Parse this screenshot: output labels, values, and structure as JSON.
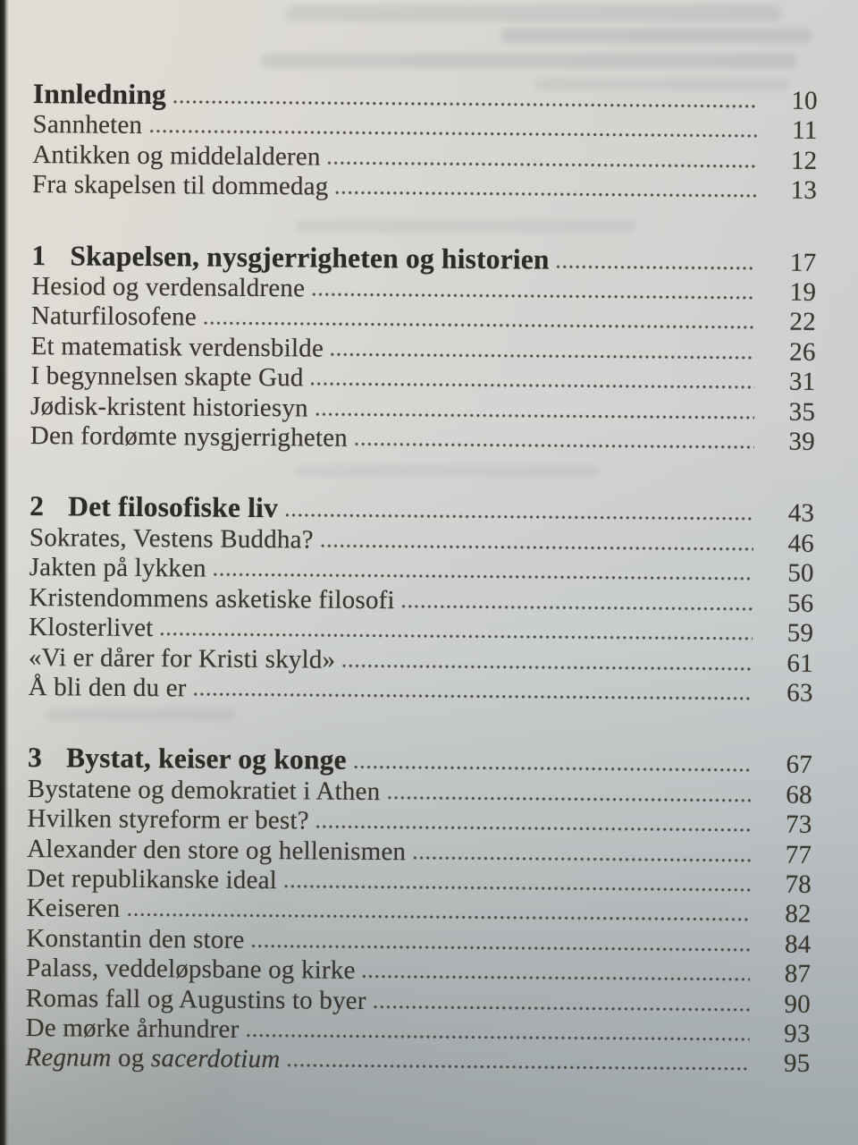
{
  "document": {
    "kind": "book-table-of-contents",
    "language": "Norwegian"
  },
  "colors": {
    "paper_light": "#d9d7d2",
    "paper_shadow": "#99a0a1",
    "spine_edge": "#1a1a18",
    "ink": "#39362f",
    "ink_heading": "#2d2b26"
  },
  "toc": {
    "sections": [
      {
        "heading": {
          "number": "",
          "title": "Innledning",
          "page": "10"
        },
        "entries": [
          {
            "title": "Sannheten",
            "page": "11"
          },
          {
            "title": "Antikken og middelalderen",
            "page": "12"
          },
          {
            "title": "Fra skapelsen til dommedag",
            "page": "13"
          }
        ]
      },
      {
        "heading": {
          "number": "1",
          "title": "Skapelsen, nysgjerrigheten og historien",
          "page": "17"
        },
        "entries": [
          {
            "title": "Hesiod og verdensaldrene",
            "page": "19"
          },
          {
            "title": "Naturfilosofene",
            "page": "22"
          },
          {
            "title": "Et matematisk verdensbilde",
            "page": "26"
          },
          {
            "title": "I begynnelsen skapte Gud",
            "page": "31"
          },
          {
            "title": "Jødisk-kristent historiesyn",
            "page": "35"
          },
          {
            "title": "Den fordømte nysgjerrigheten",
            "page": "39"
          }
        ]
      },
      {
        "heading": {
          "number": "2",
          "title": "Det filosofiske liv",
          "page": "43"
        },
        "entries": [
          {
            "title": "Sokrates, Vestens Buddha?",
            "page": "46"
          },
          {
            "title": "Jakten på lykken",
            "page": "50"
          },
          {
            "title": "Kristendommens asketiske filosofi",
            "page": "56"
          },
          {
            "title": "Klosterlivet",
            "page": "59"
          },
          {
            "title": "«Vi er dårer for Kristi skyld»",
            "page": "61"
          },
          {
            "title": "Å bli den du er",
            "page": "63"
          }
        ]
      },
      {
        "heading": {
          "number": "3",
          "title": "Bystat, keiser og konge",
          "page": "67"
        },
        "entries": [
          {
            "title": "Bystatene og demokratiet i Athen",
            "page": "68"
          },
          {
            "title": "Hvilken styreform er best?",
            "page": "73"
          },
          {
            "title": "Alexander den store og hellenismen",
            "page": "77"
          },
          {
            "title": "Det republikanske ideal",
            "page": "78"
          },
          {
            "title": "Keiseren",
            "page": "82"
          },
          {
            "title": "Konstantin den store",
            "page": "84"
          },
          {
            "title": "Palass, veddeløpsbane og kirke",
            "page": "87"
          },
          {
            "title": "Romas fall og Augustins to byer",
            "page": "90"
          },
          {
            "title": "De mørke århundrer",
            "page": "93"
          },
          {
            "segments": [
              {
                "text": "Regnum",
                "italic": true
              },
              {
                "text": " og ",
                "italic": false
              },
              {
                "text": "sacerdotium",
                "italic": true
              }
            ],
            "page": "95"
          }
        ]
      }
    ]
  }
}
